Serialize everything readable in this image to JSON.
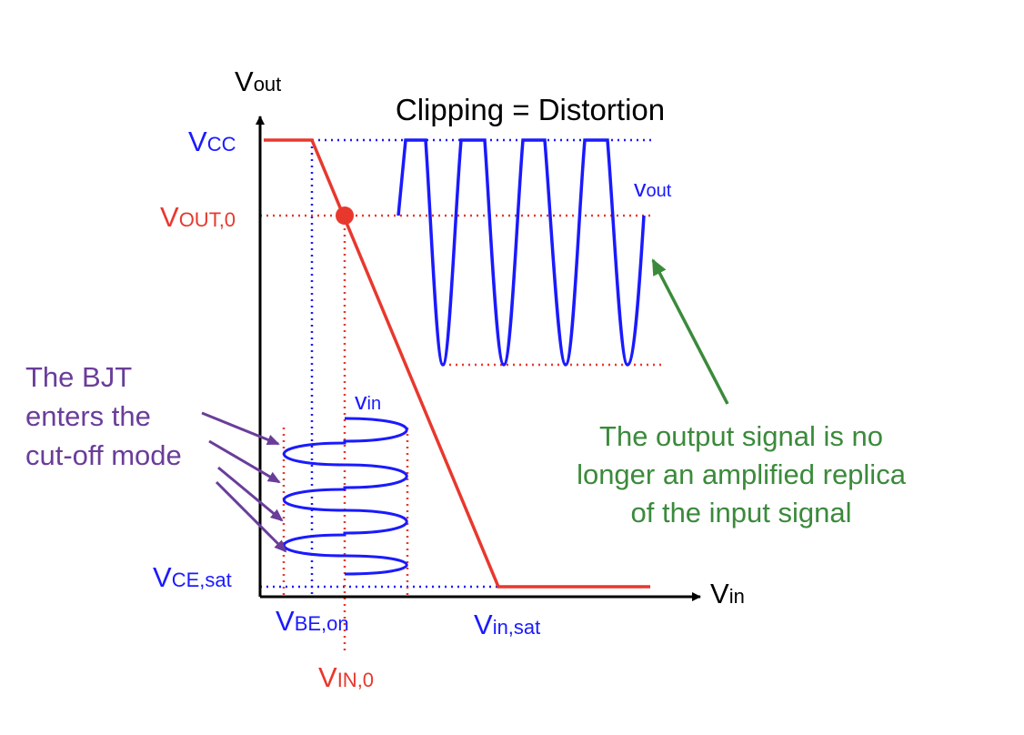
{
  "colors": {
    "axis": "#000000",
    "transfer_curve": "#e8382d",
    "signal": "#1a1aff",
    "purple_note": "#6a3d9a",
    "green_note": "#3b8a3b"
  },
  "title": "Clipping = Distortion",
  "axes": {
    "y_label": {
      "main": "V",
      "sub": "out"
    },
    "x_label": {
      "main": "V",
      "sub": "in"
    }
  },
  "levels": {
    "vcc": {
      "main": "V",
      "sub": "CC"
    },
    "vout0": {
      "main": "V",
      "sub": "OUT,0"
    },
    "vcesat": {
      "main": "V",
      "sub": "CE,sat"
    },
    "vbeon": {
      "main": "V",
      "sub": "BE,on"
    },
    "vin0": {
      "main": "V",
      "sub": "IN,0"
    },
    "vinsat": {
      "main": "V",
      "sub": "in,sat"
    }
  },
  "signals": {
    "vout": {
      "main": "v",
      "sub": "out"
    },
    "vin": {
      "main": "v",
      "sub": "in"
    }
  },
  "notes": {
    "cutoff": [
      "The BJT",
      "enters the",
      "cut-off mode"
    ],
    "output": [
      "The output signal is no",
      "longer an amplified replica",
      "of the input signal"
    ]
  }
}
